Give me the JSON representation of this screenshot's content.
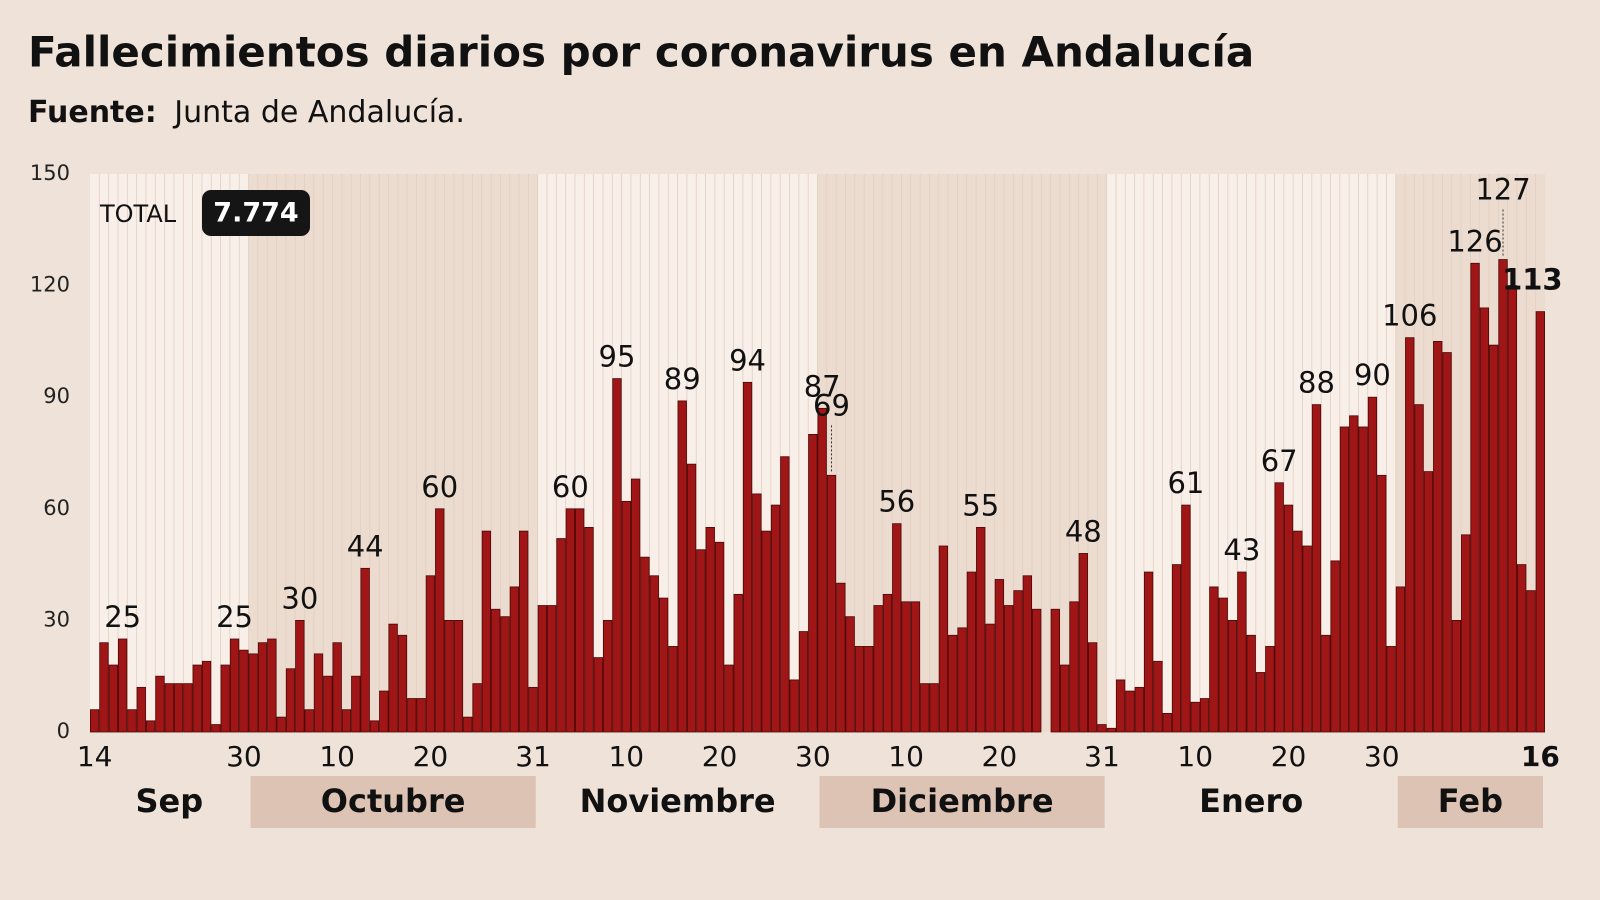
{
  "chart_data": {
    "type": "bar",
    "title": "Fallecimientos diarios por coronavirus en Andalucía",
    "subtitle": {
      "source_label": "Fuente:",
      "source": "Junta de Andalucía."
    },
    "annotations": {
      "total_label": "TOTAL",
      "total": "7.774"
    },
    "color": "#a01616",
    "grid": false,
    "ylim": [
      0,
      150
    ],
    "yticks": [
      0,
      30,
      60,
      90,
      120,
      150
    ],
    "months": [
      "Sep",
      "Octubre",
      "Noviembre",
      "Diciembre",
      "Enero",
      "Feb"
    ],
    "categories": [
      "14",
      null,
      null,
      null,
      null,
      null,
      null,
      null,
      null,
      null,
      null,
      null,
      null,
      null,
      null,
      null,
      "30",
      null,
      null,
      null,
      null,
      null,
      null,
      null,
      null,
      null,
      "10",
      null,
      null,
      null,
      null,
      null,
      null,
      null,
      null,
      null,
      "20",
      null,
      null,
      null,
      null,
      null,
      null,
      null,
      null,
      null,
      null,
      "31",
      null,
      null,
      null,
      null,
      null,
      null,
      null,
      null,
      null,
      "10",
      null,
      null,
      null,
      null,
      null,
      null,
      null,
      null,
      null,
      "20",
      null,
      null,
      null,
      null,
      null,
      null,
      null,
      null,
      null,
      "30",
      null,
      null,
      null,
      null,
      null,
      null,
      null,
      null,
      null,
      "10",
      null,
      null,
      null,
      null,
      null,
      null,
      null,
      null,
      null,
      "20",
      null,
      null,
      null,
      null,
      null,
      null,
      null,
      null,
      null,
      null,
      "31",
      null,
      null,
      null,
      null,
      null,
      null,
      null,
      null,
      null,
      "10",
      null,
      null,
      null,
      null,
      null,
      null,
      null,
      null,
      null,
      "20",
      null,
      null,
      null,
      null,
      null,
      null,
      null,
      null,
      null,
      "30",
      null,
      null,
      null,
      null,
      null,
      null,
      null,
      null,
      null,
      null,
      null,
      null,
      null,
      null,
      null,
      null,
      "16"
    ],
    "values": [
      6,
      24,
      18,
      25,
      6,
      12,
      3,
      15,
      13,
      13,
      13,
      18,
      19,
      2,
      18,
      25,
      22,
      21,
      24,
      25,
      4,
      17,
      30,
      6,
      21,
      15,
      24,
      6,
      15,
      44,
      3,
      11,
      29,
      26,
      9,
      9,
      42,
      60,
      30,
      30,
      4,
      13,
      54,
      33,
      31,
      39,
      54,
      12,
      34,
      34,
      52,
      60,
      60,
      55,
      20,
      30,
      95,
      62,
      68,
      47,
      42,
      36,
      23,
      89,
      72,
      49,
      55,
      51,
      18,
      37,
      94,
      64,
      54,
      61,
      74,
      14,
      27,
      80,
      87,
      69,
      40,
      31,
      23,
      23,
      34,
      37,
      56,
      35,
      35,
      13,
      13,
      50,
      26,
      28,
      43,
      55,
      29,
      41,
      34,
      38,
      42,
      33,
      0,
      33,
      18,
      35,
      48,
      24,
      2,
      1,
      14,
      11,
      12,
      43,
      19,
      5,
      45,
      61,
      8,
      9,
      39,
      36,
      30,
      43,
      26,
      16,
      23,
      67,
      61,
      54,
      50,
      88,
      26,
      46,
      82,
      85,
      82,
      90,
      69,
      23,
      39,
      106,
      88,
      70,
      105,
      102,
      30,
      53,
      126,
      114,
      104,
      127,
      120,
      45,
      38,
      113
    ],
    "value_labels": [
      null,
      null,
      null,
      "25",
      null,
      null,
      null,
      null,
      null,
      null,
      null,
      null,
      null,
      null,
      null,
      "25",
      null,
      null,
      null,
      null,
      null,
      null,
      "30",
      null,
      null,
      null,
      null,
      null,
      null,
      "44",
      null,
      null,
      null,
      null,
      null,
      null,
      null,
      "60",
      null,
      null,
      null,
      null,
      null,
      null,
      null,
      null,
      null,
      null,
      null,
      null,
      null,
      "60",
      null,
      null,
      null,
      null,
      "95",
      null,
      null,
      null,
      null,
      null,
      null,
      "89",
      null,
      null,
      null,
      null,
      null,
      null,
      "94",
      null,
      null,
      null,
      null,
      null,
      null,
      null,
      "87",
      "69",
      null,
      null,
      null,
      null,
      null,
      null,
      "56",
      null,
      null,
      null,
      null,
      null,
      null,
      null,
      null,
      "55",
      null,
      null,
      null,
      null,
      null,
      null,
      null,
      null,
      null,
      null,
      "48",
      null,
      null,
      null,
      null,
      null,
      null,
      null,
      null,
      null,
      null,
      "61",
      null,
      null,
      null,
      null,
      null,
      "43",
      null,
      null,
      null,
      "67",
      null,
      null,
      null,
      "88",
      null,
      null,
      null,
      null,
      null,
      "90",
      null,
      null,
      null,
      "106",
      null,
      null,
      null,
      null,
      null,
      null,
      "126",
      null,
      null,
      "127",
      null,
      null,
      null,
      "113"
    ]
  }
}
